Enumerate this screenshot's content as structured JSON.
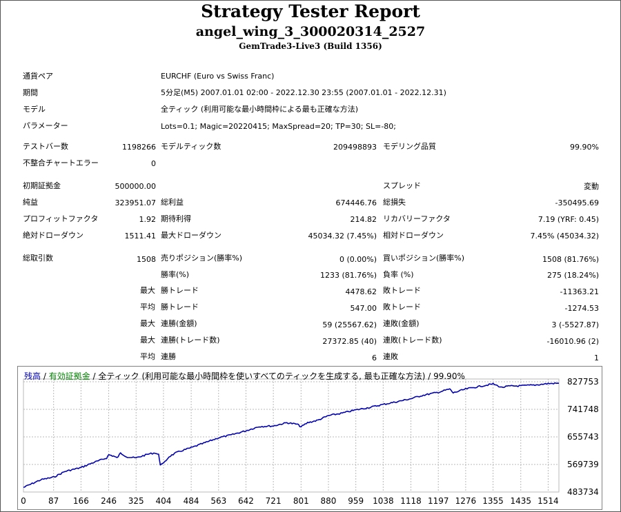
{
  "header": {
    "title": "Strategy Tester Report",
    "subtitle": "angel_wing_3_300020314_2527",
    "server": "GemTrade3-Live3 (Build 1356)"
  },
  "info": [
    {
      "label": "通貨ペア",
      "value": "EURCHF (Euro vs Swiss Franc)"
    },
    {
      "label": "期間",
      "value": "5分足(M5) 2007.01.01 02:00 - 2022.12.30 23:55 (2007.01.01 - 2022.12.31)"
    },
    {
      "label": "モデル",
      "value": "全ティック (利用可能な最小時間枠による最も正確な方法)"
    },
    {
      "label": "パラメーター",
      "value": "Lots=0.1; Magic=20220415; MaxSpread=20; TP=30; SL=-80;"
    }
  ],
  "bars": {
    "label": "テストバー数",
    "value": "1198266",
    "ticks_label": "モデルティック数",
    "ticks_value": "209498893",
    "quality_label": "モデリング品質",
    "quality_value": "99.90%",
    "errors_label": "不整合チャートエラー",
    "errors_value": "0"
  },
  "stats": {
    "deposit_label": "初期証拠金",
    "deposit_value": "500000.00",
    "spread_label": "スプレッド",
    "spread_value": "変動",
    "net_label": "純益",
    "net_value": "323951.07",
    "gross_profit_label": "総利益",
    "gross_profit_value": "674446.76",
    "gross_loss_label": "総損失",
    "gross_loss_value": "-350495.69",
    "pf_label": "プロフィットファクタ",
    "pf_value": "1.92",
    "payoff_label": "期待利得",
    "payoff_value": "214.82",
    "recovery_label": "リカバリーファクタ",
    "recovery_value": "7.19 (YRF: 0.45)",
    "abs_dd_label": "絶対ドローダウン",
    "abs_dd_value": "1511.41",
    "max_dd_label": "最大ドローダウン",
    "max_dd_value": "45034.32 (7.45%)",
    "rel_dd_label": "相対ドローダウン",
    "rel_dd_value": "7.45% (45034.32)"
  },
  "trades": {
    "total_label": "総取引数",
    "total_value": "1508",
    "short_label": "売りポジション(勝率%)",
    "short_value": "0 (0.00%)",
    "long_label": "買いポジション(勝率%)",
    "long_value": "1508 (81.76%)",
    "win_rate_label": "勝率(%)",
    "win_rate_value": "1233 (81.76%)",
    "loss_rate_label": "負率 (%)",
    "loss_rate_value": "275 (18.24%)",
    "max_prefix": "最大",
    "avg_prefix": "平均",
    "largest_win_label": "勝トレード",
    "largest_win_value": "4478.62",
    "largest_loss_label": "敗トレード",
    "largest_loss_value": "-11363.21",
    "avg_win_label": "勝トレード",
    "avg_win_value": "547.00",
    "avg_loss_label": "敗トレード",
    "avg_loss_value": "-1274.53",
    "max_consec_win_label": "連勝(金額)",
    "max_consec_win_value": "59 (25567.62)",
    "max_consec_loss_label": "連敗(金額)",
    "max_consec_loss_value": "3 (-5527.87)",
    "max_consec_profit_label": "連勝(トレード数)",
    "max_consec_profit_value": "27372.85 (40)",
    "max_consec_lossamt_label": "連敗(トレード数)",
    "max_consec_lossamt_value": "-16010.96 (2)",
    "avg_consec_win_label": "連勝",
    "avg_consec_win_value": "6",
    "avg_consec_loss_label": "連敗",
    "avg_consec_loss_value": "1"
  },
  "legend": {
    "balance": "残高",
    "sep1": " / ",
    "equity": "有効証拠金",
    "sep2": " / ",
    "desc": "全ティック (利用可能な最小時間枠を使いすべてのティックを生成する, 最も正確な方法) / 99.90%"
  },
  "colors": {
    "balance": "#0000b0",
    "equity": "#008000",
    "grid": "#b8b8b8"
  },
  "chart_data": {
    "type": "line",
    "x_ticks": [
      "0",
      "87",
      "166",
      "246",
      "325",
      "404",
      "484",
      "563",
      "642",
      "721",
      "801",
      "880",
      "959",
      "1038",
      "1118",
      "1197",
      "1276",
      "1355",
      "1435",
      "1514"
    ],
    "y_ticks": [
      "827753",
      "741748",
      "655743",
      "569739",
      "483734"
    ],
    "xlim": [
      0,
      1545
    ],
    "ylim": [
      483734,
      860000
    ],
    "series": [
      {
        "name": "残高",
        "x": [
          0,
          25,
          50,
          87,
          120,
          166,
          200,
          240,
          246,
          260,
          270,
          280,
          300,
          325,
          360,
          380,
          390,
          395,
          404,
          420,
          440,
          460,
          484,
          520,
          563,
          600,
          642,
          680,
          721,
          760,
          790,
          801,
          820,
          850,
          880,
          920,
          959,
          1000,
          1038,
          1080,
          1118,
          1150,
          1197,
          1230,
          1240,
          1276,
          1300,
          1340,
          1355,
          1380,
          1400,
          1435,
          1480,
          1514,
          1545
        ],
        "values": [
          498000,
          510000,
          522000,
          530000,
          548000,
          560000,
          575000,
          590000,
          600000,
          596000,
          590000,
          605000,
          593000,
          590000,
          602000,
          606000,
          600000,
          570000,
          572000,
          594000,
          606000,
          614000,
          622000,
          636000,
          653000,
          662000,
          675000,
          688000,
          690000,
          700000,
          695000,
          687000,
          700000,
          708000,
          722000,
          730000,
          740000,
          748000,
          757000,
          766000,
          775000,
          785000,
          795000,
          805000,
          793000,
          805000,
          810000,
          818000,
          821000,
          810000,
          814000,
          815000,
          818000,
          822000,
          823000
        ]
      }
    ]
  }
}
